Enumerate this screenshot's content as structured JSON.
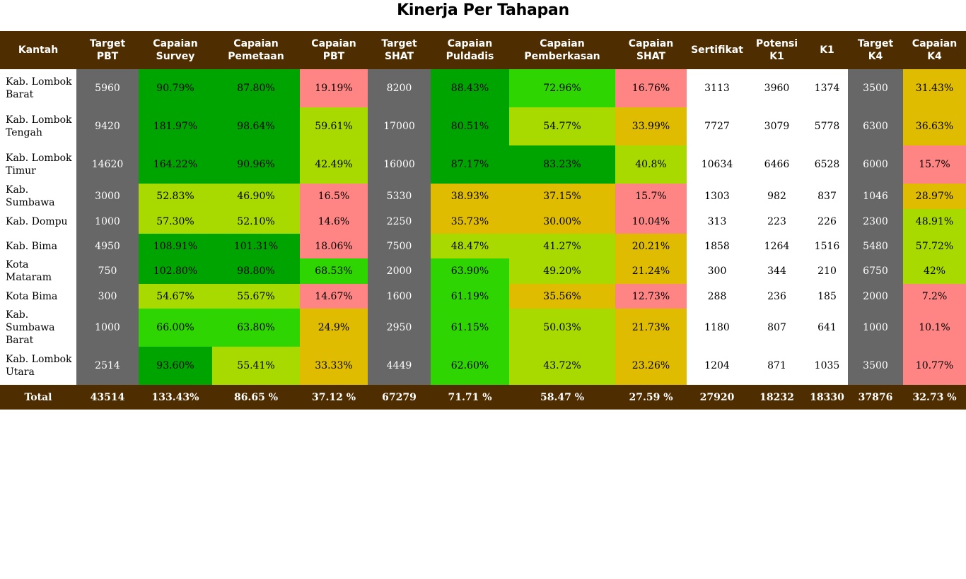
{
  "title": "Kinerja Per Tahapan",
  "columns": [
    [
      "Kantah"
    ],
    [
      "Target",
      "PBT"
    ],
    [
      "Capaian",
      "Survey"
    ],
    [
      "Capaian",
      "Pemetaan"
    ],
    [
      "Capaian",
      "PBT"
    ],
    [
      "Target",
      "SHAT"
    ],
    [
      "Capaian",
      "Puldadis"
    ],
    [
      "Capaian",
      "Pemberkasan"
    ],
    [
      "Capaian",
      "SHAT"
    ],
    [
      "Sertifikat"
    ],
    [
      "Potensi",
      "K1"
    ],
    [
      "K1"
    ],
    [
      "Target",
      "K4"
    ],
    [
      "Capaian",
      "K4"
    ]
  ],
  "colors": {
    "header_bg": "#4e2d00",
    "gray": "#676767",
    "dark_green": "#00a400",
    "mid_green": "#2fd500",
    "light_green": "#a8da00",
    "yellow": "#dfbc00",
    "red": "#ff8585"
  },
  "rows": [
    {
      "name": [
        "Kab. Lombok",
        "Barat"
      ],
      "cells": [
        "5960",
        "90.79%",
        "87.80%",
        "19.19%",
        "8200",
        "88.43%",
        "72.96%",
        "16.76%",
        "3113",
        "3960",
        "1374",
        "3500",
        "31.43%"
      ],
      "status": [
        "gray",
        "dg",
        "dg",
        "rd",
        "gray",
        "dg",
        "mg",
        "rd",
        "white",
        "white",
        "white",
        "gray",
        "yl"
      ]
    },
    {
      "name": [
        "Kab. Lombok",
        "Tengah"
      ],
      "cells": [
        "9420",
        "181.97%",
        "98.64%",
        "59.61%",
        "17000",
        "80.51%",
        "54.77%",
        "33.99%",
        "7727",
        "3079",
        "5778",
        "6300",
        "36.63%"
      ],
      "status": [
        "gray",
        "dg",
        "dg",
        "lg",
        "gray",
        "dg",
        "lg",
        "yl",
        "white",
        "white",
        "white",
        "gray",
        "yl"
      ]
    },
    {
      "name": [
        "Kab. Lombok",
        "Timur"
      ],
      "cells": [
        "14620",
        "164.22%",
        "90.96%",
        "42.49%",
        "16000",
        "87.17%",
        "83.23%",
        "40.8%",
        "10634",
        "6466",
        "6528",
        "6000",
        "15.7%"
      ],
      "status": [
        "gray",
        "dg",
        "dg",
        "lg",
        "gray",
        "dg",
        "dg",
        "lg",
        "white",
        "white",
        "white",
        "gray",
        "rd"
      ]
    },
    {
      "name": [
        "Kab. Sumbawa"
      ],
      "cells": [
        "3000",
        "52.83%",
        "46.90%",
        "16.5%",
        "5330",
        "38.93%",
        "37.15%",
        "15.7%",
        "1303",
        "982",
        "837",
        "1046",
        "28.97%"
      ],
      "status": [
        "gray",
        "lg",
        "lg",
        "rd",
        "gray",
        "yl",
        "yl",
        "rd",
        "white",
        "white",
        "white",
        "gray",
        "yl"
      ]
    },
    {
      "name": [
        "Kab. Dompu"
      ],
      "cells": [
        "1000",
        "57.30%",
        "52.10%",
        "14.6%",
        "2250",
        "35.73%",
        "30.00%",
        "10.04%",
        "313",
        "223",
        "226",
        "2300",
        "48.91%"
      ],
      "status": [
        "gray",
        "lg",
        "lg",
        "rd",
        "gray",
        "yl",
        "yl",
        "rd",
        "white",
        "white",
        "white",
        "gray",
        "lg"
      ]
    },
    {
      "name": [
        "Kab. Bima"
      ],
      "cells": [
        "4950",
        "108.91%",
        "101.31%",
        "18.06%",
        "7500",
        "48.47%",
        "41.27%",
        "20.21%",
        "1858",
        "1264",
        "1516",
        "5480",
        "57.72%"
      ],
      "status": [
        "gray",
        "dg",
        "dg",
        "rd",
        "gray",
        "lg",
        "lg",
        "yl",
        "white",
        "white",
        "white",
        "gray",
        "lg"
      ]
    },
    {
      "name": [
        "Kota Mataram"
      ],
      "cells": [
        "750",
        "102.80%",
        "98.80%",
        "68.53%",
        "2000",
        "63.90%",
        "49.20%",
        "21.24%",
        "300",
        "344",
        "210",
        "6750",
        "42%"
      ],
      "status": [
        "gray",
        "dg",
        "dg",
        "mg",
        "gray",
        "mg",
        "lg",
        "yl",
        "white",
        "white",
        "white",
        "gray",
        "lg"
      ]
    },
    {
      "name": [
        "Kota Bima"
      ],
      "cells": [
        "300",
        "54.67%",
        "55.67%",
        "14.67%",
        "1600",
        "61.19%",
        "35.56%",
        "12.73%",
        "288",
        "236",
        "185",
        "2000",
        "7.2%"
      ],
      "status": [
        "gray",
        "lg",
        "lg",
        "rd",
        "gray",
        "mg",
        "yl",
        "rd",
        "white",
        "white",
        "white",
        "gray",
        "rd"
      ]
    },
    {
      "name": [
        "Kab. Sumbawa",
        "Barat"
      ],
      "cells": [
        "1000",
        "66.00%",
        "63.80%",
        "24.9%",
        "2950",
        "61.15%",
        "50.03%",
        "21.73%",
        "1180",
        "807",
        "641",
        "1000",
        "10.1%"
      ],
      "status": [
        "gray",
        "mg",
        "mg",
        "yl",
        "gray",
        "mg",
        "lg",
        "yl",
        "white",
        "white",
        "white",
        "gray",
        "rd"
      ]
    },
    {
      "name": [
        "Kab. Lombok",
        "Utara"
      ],
      "cells": [
        "2514",
        "93.60%",
        "55.41%",
        "33.33%",
        "4449",
        "62.60%",
        "43.72%",
        "23.26%",
        "1204",
        "871",
        "1035",
        "3500",
        "10.77%"
      ],
      "status": [
        "gray",
        "dg",
        "lg",
        "yl",
        "gray",
        "mg",
        "lg",
        "yl",
        "white",
        "white",
        "white",
        "gray",
        "rd"
      ]
    }
  ],
  "total": {
    "label": "Total",
    "cells": [
      "43514",
      "133.43%",
      "86.65 %",
      "37.12 %",
      "67279",
      "71.71 %",
      "58.47 %",
      "27.59 %",
      "27920",
      "18232",
      "18330",
      "37876",
      "32.73 %"
    ]
  }
}
